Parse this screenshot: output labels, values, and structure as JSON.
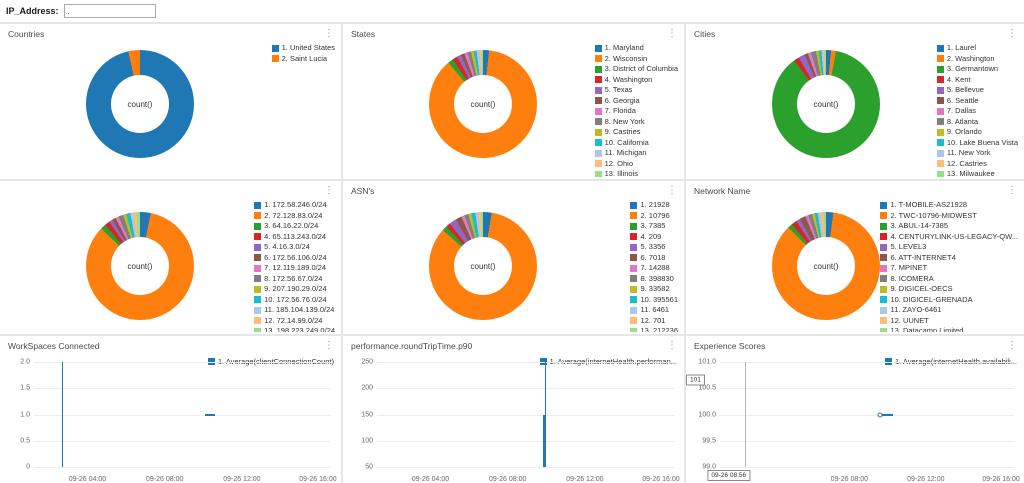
{
  "filter": {
    "label": "IP_Address:",
    "value": "."
  },
  "palette": [
    "#1f77b4",
    "#ff7f0e",
    "#2ca02c",
    "#d62728",
    "#9467bd",
    "#8c564b",
    "#e377c2",
    "#7f7f7f",
    "#bcbd22",
    "#17becf",
    "#aec7e8",
    "#ffbb78",
    "#98df8a"
  ],
  "donut_panels": [
    {
      "title": "Countries",
      "center_label": "count()",
      "legend": [
        "1. United States",
        "2. Saint Lucia"
      ],
      "values": [
        96.5,
        3.5
      ]
    },
    {
      "title": "States",
      "center_label": "count()",
      "legend": [
        "1. Maryland",
        "2. Wisconsin",
        "3. District of Columbia",
        "4. Washington",
        "5. Texas",
        "6. Georgia",
        "7. Florida",
        "8. New York",
        "9. Castries",
        "10. California",
        "11. Michigan",
        "12. Ohio",
        "13. Illinois"
      ],
      "values": [
        1.8,
        86.2,
        1.6,
        1.5,
        1.2,
        1.1,
        1.0,
        1.0,
        0.9,
        0.8,
        0.8,
        0.6,
        0.5
      ]
    },
    {
      "title": "Cities",
      "center_label": "count()",
      "legend": [
        "1. Laurel",
        "2. Washington",
        "3. Germantown",
        "4. Kent",
        "5. Bellevue",
        "6. Seattle",
        "7. Dallas",
        "8. Atlanta",
        "9. Orlando",
        "10. Lake Buena Vista",
        "11. New York",
        "12. Castries",
        "13. Milwaukee"
      ],
      "values": [
        1.5,
        1.5,
        87.0,
        1.5,
        2.0,
        1.0,
        1.0,
        1.5,
        0.8,
        0.8,
        0.5,
        0.5,
        0.4
      ]
    },
    {
      "title": "",
      "center_label": "count()",
      "legend": [
        "1. 172.58.246.0/24",
        "2. 72.128.83.0/24",
        "3. 64.16.22.0/24",
        "4. 65.113.243.0/24",
        "5. 4.16.3.0/24",
        "6. 172.56.106.0/24",
        "7. 12.119.189.0/24",
        "8. 172.56.67.0/24",
        "9. 207.190.29.0/24",
        "10. 172.56.76.0/24",
        "11. 185.104.139.0/24",
        "12. 72.14.99.0/24",
        "13. 198.223.249.0/24"
      ],
      "values": [
        3.2,
        84.0,
        1.6,
        1.5,
        1.1,
        1.1,
        1.0,
        1.4,
        1.0,
        1.2,
        0.9,
        0.9,
        1.1
      ]
    },
    {
      "title": "ASN's",
      "center_label": "count()",
      "legend": [
        "1. 21928",
        "2. 10796",
        "3. 7385",
        "4. 209",
        "5. 3356",
        "6. 7018",
        "7. 14288",
        "8. 398830",
        "9. 33582",
        "10. 395561",
        "11. 6461",
        "12. 701",
        "13. 212236"
      ],
      "values": [
        2.6,
        84.0,
        1.5,
        1.3,
        2.2,
        1.8,
        1.0,
        1.2,
        0.9,
        1.2,
        0.8,
        0.8,
        0.7
      ]
    },
    {
      "title": "Network Name",
      "center_label": "count()",
      "legend": [
        "1. T-MOBILE-AS21928",
        "2. TWC-10796-MIDWEST",
        "3. ABUL-14-7385",
        "4. CENTURYLINK-US-LEGACY-QW...",
        "5. LEVEL3",
        "6. ATT-INTERNET4",
        "7. MPINET",
        "8. ICOMERA",
        "9. DIGICEL-OECS",
        "10. DIGICEL-GRENADA",
        "11. ZAYO-6461",
        "12. UUNET",
        "13. Datacamp Limited"
      ],
      "values": [
        2.2,
        85.5,
        1.4,
        1.6,
        1.2,
        1.8,
        0.9,
        1.2,
        0.8,
        0.9,
        0.9,
        0.9,
        0.7
      ]
    }
  ],
  "line_panels": [
    {
      "title": "WorkSpaces Connected",
      "legend": "1. Average(clientConnectionCount)",
      "series_color": "#1f77b4",
      "y_ticks": [
        "2.0",
        "1.5",
        "1.0",
        "0.5",
        "0"
      ],
      "x_ticks": [
        {
          "x": 0.18,
          "label": "09-26 04:00"
        },
        {
          "x": 0.44,
          "label": "09-26 08:00"
        },
        {
          "x": 0.7,
          "label": "09-26 12:00"
        },
        {
          "x": 0.956,
          "label": "09-26 16:00"
        }
      ],
      "marks": [
        {
          "type": "vline",
          "x": 0.094,
          "y1": 0,
          "y2": 1,
          "w": 1,
          "color": "#1f77b4"
        },
        {
          "type": "hseg",
          "x1": 0.576,
          "x2": 0.61,
          "y": 0.5,
          "color": "#1f77b4"
        }
      ]
    },
    {
      "title": "performance.roundTripTime.p90",
      "legend": "1. Average(internetHealth.performan...",
      "series_color": "#1f77b4",
      "y_ticks": [
        "250",
        "200",
        "150",
        "100",
        "50"
      ],
      "x_ticks": [
        {
          "x": 0.18,
          "label": "09-26 04:00"
        },
        {
          "x": 0.44,
          "label": "09-26 08:00"
        },
        {
          "x": 0.7,
          "label": "09-26 12:00"
        },
        {
          "x": 0.956,
          "label": "09-26 16:00"
        }
      ],
      "marks": [
        {
          "type": "vline",
          "x": 0.558,
          "y1": 0.5,
          "y2": 1,
          "w": 2,
          "color": "#1f77b4"
        },
        {
          "type": "vline",
          "x": 0.566,
          "y1": 0,
          "y2": 1,
          "w": 1,
          "color": "#1f77b4"
        }
      ]
    },
    {
      "title": "Experience Scores",
      "legend": "1. Average(internetHealth.availabili...",
      "series_color": "#1f77b4",
      "y_ticks": [
        "101.0",
        "100.5",
        "100.0",
        "99.5",
        "99.0"
      ],
      "x_ticks": [
        {
          "x": 0.44,
          "label": "09-26 08:00"
        },
        {
          "x": 0.7,
          "label": "09-26 12:00"
        },
        {
          "x": 0.956,
          "label": "09-26 16:00"
        }
      ],
      "marks": [
        {
          "type": "vline",
          "x": 0.085,
          "y1": 0,
          "y2": 1,
          "w": 1,
          "color": "#b5b5b5"
        },
        {
          "type": "ybox",
          "text": "101",
          "y": 0.17
        },
        {
          "type": "xbox",
          "text": "09-26 08:56",
          "x": 0.085
        },
        {
          "type": "point",
          "x": 0.544,
          "y": 0.5
        },
        {
          "type": "hseg",
          "x1": 0.552,
          "x2": 0.59,
          "y": 0.5,
          "color": "#1f77b4"
        }
      ]
    }
  ]
}
